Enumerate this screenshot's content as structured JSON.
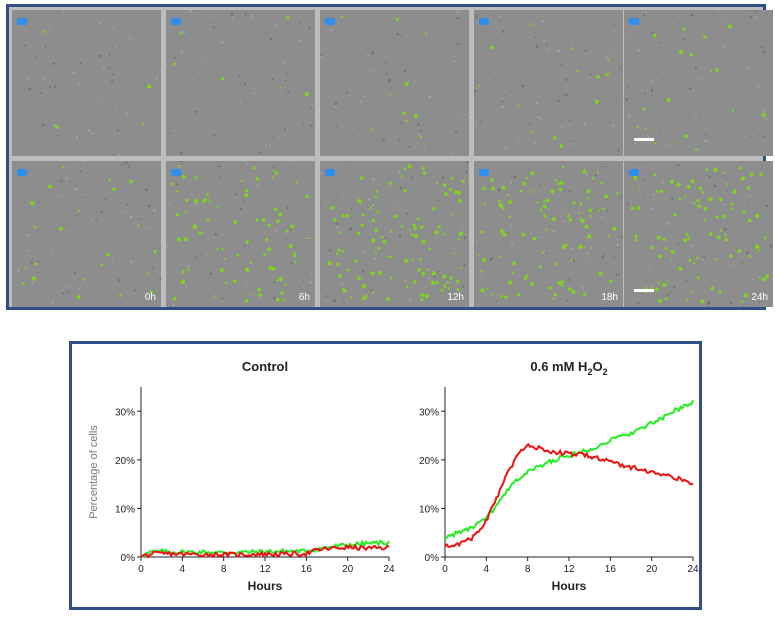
{
  "microscopy": {
    "timepoints": [
      "0h",
      "6h",
      "12h",
      "18h",
      "24h"
    ],
    "badge_color": "#2d8ff0",
    "cell_color": "#7ed321"
  },
  "chart_data": [
    {
      "type": "line",
      "title": "Control",
      "xlabel": "Hours",
      "ylabel": "Percentage of cells",
      "xlim": [
        0,
        24
      ],
      "ylim": [
        0,
        35
      ],
      "xticks": [
        0,
        4,
        8,
        12,
        16,
        20,
        24
      ],
      "yticks": [
        0,
        10,
        20,
        30
      ],
      "ytick_labels": [
        "0%",
        "10%",
        "20%",
        "30%"
      ],
      "series": [
        {
          "name": "green",
          "color": "#22ee22",
          "x": [
            0,
            1,
            2,
            4,
            6,
            8,
            10,
            12,
            14,
            16,
            17,
            18,
            20,
            22,
            24
          ],
          "y": [
            0.3,
            1.0,
            1.1,
            1.0,
            1.0,
            0.9,
            1.0,
            1.1,
            1.2,
            1.2,
            1.6,
            2.0,
            2.5,
            2.8,
            3.0
          ]
        },
        {
          "name": "red",
          "color": "#ee1111",
          "x": [
            0,
            1,
            2,
            4,
            6,
            8,
            10,
            12,
            14,
            16,
            17,
            18,
            20,
            22,
            24
          ],
          "y": [
            0.1,
            0.6,
            0.7,
            0.6,
            0.5,
            0.5,
            0.5,
            0.6,
            0.6,
            0.7,
            1.4,
            1.7,
            2.0,
            1.8,
            1.9
          ]
        }
      ]
    },
    {
      "type": "line",
      "title": "0.6 mM H",
      "title_sub1": "2",
      "title_mid": "O",
      "title_sub2": "2",
      "xlabel": "Hours",
      "ylabel": "",
      "xlim": [
        0,
        24
      ],
      "ylim": [
        0,
        35
      ],
      "xticks": [
        0,
        4,
        8,
        12,
        16,
        20,
        24
      ],
      "yticks": [
        0,
        10,
        20,
        30
      ],
      "ytick_labels": [
        "0%",
        "10%",
        "20%",
        "30%"
      ],
      "series": [
        {
          "name": "green",
          "color": "#22ee22",
          "x": [
            0,
            1,
            2,
            3,
            4,
            5,
            6,
            7,
            8,
            9,
            10,
            11,
            12,
            13,
            14,
            15,
            16,
            17,
            18,
            19,
            20,
            21,
            22,
            23,
            24
          ],
          "y": [
            4.0,
            4.8,
            5.5,
            6.5,
            8.0,
            10.5,
            13.5,
            16.0,
            17.5,
            18.5,
            19.5,
            20.3,
            20.8,
            21.5,
            22.3,
            23.0,
            24.0,
            24.8,
            25.5,
            26.5,
            27.5,
            28.5,
            29.8,
            31.0,
            32.0
          ]
        },
        {
          "name": "red",
          "color": "#ee1111",
          "x": [
            0,
            1,
            2,
            3,
            4,
            5,
            6,
            7,
            8,
            9,
            10,
            11,
            12,
            13,
            14,
            15,
            16,
            17,
            18,
            19,
            20,
            21,
            22,
            23,
            24
          ],
          "y": [
            2.2,
            2.5,
            3.2,
            4.5,
            7.5,
            12.0,
            17.0,
            21.0,
            22.8,
            22.5,
            21.8,
            21.5,
            21.2,
            21.2,
            20.8,
            20.2,
            19.6,
            19.0,
            18.5,
            18.0,
            17.5,
            17.0,
            16.5,
            15.8,
            14.8
          ]
        }
      ]
    }
  ]
}
